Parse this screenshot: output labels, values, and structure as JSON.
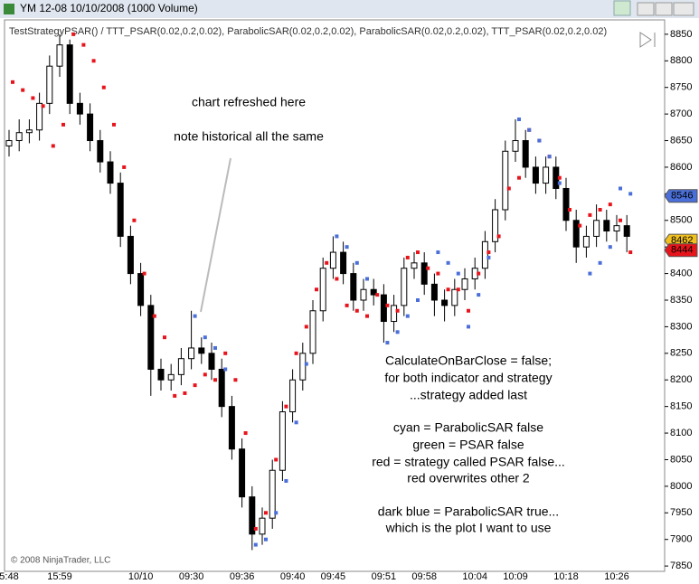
{
  "window_title": "YM 12-08  10/10/2008 (1000 Volume)",
  "chart_data": {
    "type": "candlestick",
    "subtitle": "TestStrategyPSAR() / TTT_PSAR(0.02,0.2,0.02), ParabolicSAR(0.02,0.2,0.02), ParabolicSAR(0.02,0.2,0.02), TTT_PSAR(0.02,0.2,0.02)",
    "copyright": "© 2008 NinjaTrader, LLC",
    "categories": [
      "5:48",
      null,
      null,
      null,
      null,
      "15:59",
      null,
      null,
      null,
      null,
      null,
      null,
      null,
      "10/10",
      null,
      null,
      null,
      null,
      "09:30",
      null,
      null,
      null,
      null,
      "09:36",
      null,
      null,
      null,
      null,
      "09:40",
      null,
      null,
      null,
      "09:45",
      null,
      null,
      null,
      null,
      "09:51",
      null,
      null,
      null,
      "09:58",
      null,
      null,
      null,
      null,
      "10:04",
      null,
      null,
      null,
      "10:09",
      null,
      null,
      null,
      null,
      "10:18",
      null,
      null,
      null,
      null,
      "10:26",
      null
    ],
    "open": [
      8640,
      8650,
      8665,
      8670,
      8720,
      8790,
      8830,
      8720,
      8700,
      8650,
      8610,
      8570,
      8470,
      8400,
      8340,
      8220,
      8200,
      8210,
      8240,
      8260,
      8250,
      8220,
      8150,
      8070,
      7980,
      7910,
      7940,
      8030,
      8140,
      8200,
      8250,
      8330,
      8410,
      8440,
      8400,
      8350,
      8370,
      8360,
      8310,
      8340,
      8410,
      8420,
      8380,
      8350,
      8340,
      8370,
      8390,
      8410,
      8460,
      8520,
      8630,
      8650,
      8600,
      8570,
      8600,
      8560,
      8500,
      8450,
      8470,
      8500,
      8480,
      8490
    ],
    "high": [
      8670,
      8690,
      8690,
      8740,
      8810,
      8850,
      8840,
      8740,
      8720,
      8670,
      8630,
      8590,
      8490,
      8420,
      8360,
      8240,
      8230,
      8260,
      8330,
      8280,
      8270,
      8240,
      8170,
      8090,
      8000,
      7960,
      8050,
      8160,
      8220,
      8270,
      8350,
      8430,
      8470,
      8460,
      8420,
      8390,
      8390,
      8380,
      8360,
      8430,
      8440,
      8440,
      8400,
      8370,
      8390,
      8410,
      8430,
      8480,
      8540,
      8650,
      8690,
      8670,
      8620,
      8620,
      8620,
      8580,
      8520,
      8490,
      8530,
      8520,
      8510,
      8510
    ],
    "low": [
      8620,
      8630,
      8645,
      8650,
      8700,
      8770,
      8700,
      8680,
      8630,
      8590,
      8550,
      8450,
      8380,
      8320,
      8170,
      8180,
      8180,
      8190,
      8220,
      8230,
      8200,
      8130,
      8050,
      7960,
      7880,
      7890,
      7920,
      8010,
      8120,
      8180,
      8230,
      8310,
      8390,
      8380,
      8330,
      8330,
      8340,
      8270,
      8290,
      8320,
      8390,
      8360,
      8320,
      8310,
      8320,
      8350,
      8370,
      8390,
      8440,
      8500,
      8610,
      8580,
      8550,
      8550,
      8540,
      8480,
      8420,
      8430,
      8450,
      8460,
      8460,
      8440
    ],
    "close": [
      8650,
      8665,
      8670,
      8720,
      8790,
      8830,
      8720,
      8700,
      8650,
      8610,
      8570,
      8470,
      8400,
      8340,
      8220,
      8200,
      8210,
      8240,
      8260,
      8250,
      8220,
      8150,
      8070,
      7980,
      7910,
      7940,
      8030,
      8140,
      8200,
      8250,
      8330,
      8410,
      8440,
      8400,
      8350,
      8370,
      8360,
      8310,
      8340,
      8410,
      8420,
      8380,
      8350,
      8340,
      8370,
      8390,
      8410,
      8460,
      8520,
      8630,
      8650,
      8600,
      8570,
      8600,
      8560,
      8500,
      8450,
      8470,
      8500,
      8480,
      8490,
      8470
    ],
    "up_color": "#ffffff",
    "down_color": "#000000",
    "series": [
      {
        "color": "#e8141c",
        "values": [
          8760,
          8745,
          8730,
          8715,
          8640,
          8680,
          8850,
          8830,
          8800,
          8750,
          8680,
          8600,
          8500,
          8400,
          8320,
          8280,
          8170,
          8175,
          8190,
          8210,
          8200,
          8250,
          8200,
          8100,
          7920,
          7950,
          8050,
          8150,
          8250,
          8300,
          8370,
          8420,
          8390,
          8340,
          8330,
          8320,
          8360,
          8340,
          8330,
          8430,
          8440,
          8410,
          8400,
          8370,
          8370,
          8330,
          8400,
          8440,
          8470,
          8560,
          8580,
          8670,
          8650,
          8620,
          8580,
          8520,
          8490,
          8510,
          8520,
          8530,
          8500,
          8440
        ]
      },
      {
        "color": "#4a6fd8",
        "values": [
          null,
          null,
          null,
          null,
          null,
          null,
          null,
          null,
          null,
          null,
          null,
          null,
          null,
          null,
          null,
          null,
          null,
          null,
          8320,
          8280,
          8260,
          8220,
          null,
          null,
          7890,
          7900,
          7950,
          8010,
          8120,
          8230,
          null,
          null,
          8470,
          8450,
          8420,
          8390,
          null,
          8270,
          8290,
          8320,
          8350,
          null,
          8440,
          8420,
          8400,
          8300,
          8360,
          8430,
          null,
          null,
          8690,
          8670,
          8650,
          8620,
          8570,
          null,
          null,
          8400,
          8420,
          8450,
          8560,
          8550
        ]
      }
    ],
    "price_markers": [
      {
        "value": 8546,
        "color": "#4a6fd8"
      },
      {
        "value": 8462,
        "color": "#f0c020"
      },
      {
        "value": 8444,
        "color": "#e8141c"
      }
    ],
    "ylim": [
      7840,
      8877
    ],
    "yticks": [
      7850,
      7900,
      7950,
      8000,
      8050,
      8100,
      8150,
      8200,
      8250,
      8300,
      8350,
      8400,
      8450,
      8500,
      8550,
      8600,
      8650,
      8700,
      8750,
      8800,
      8850
    ],
    "annotations": [
      "chart refreshed here",
      "note historical all the same",
      "CalculateOnBarClose = false;",
      "for both indicator and strategy",
      "...strategy added last",
      "cyan = ParabolicSAR false",
      "green = PSAR false",
      "red = strategy called PSAR false...",
      "red overwrites other 2",
      "dark blue = ParabolicSAR true...",
      "which is the plot I want to use"
    ]
  }
}
